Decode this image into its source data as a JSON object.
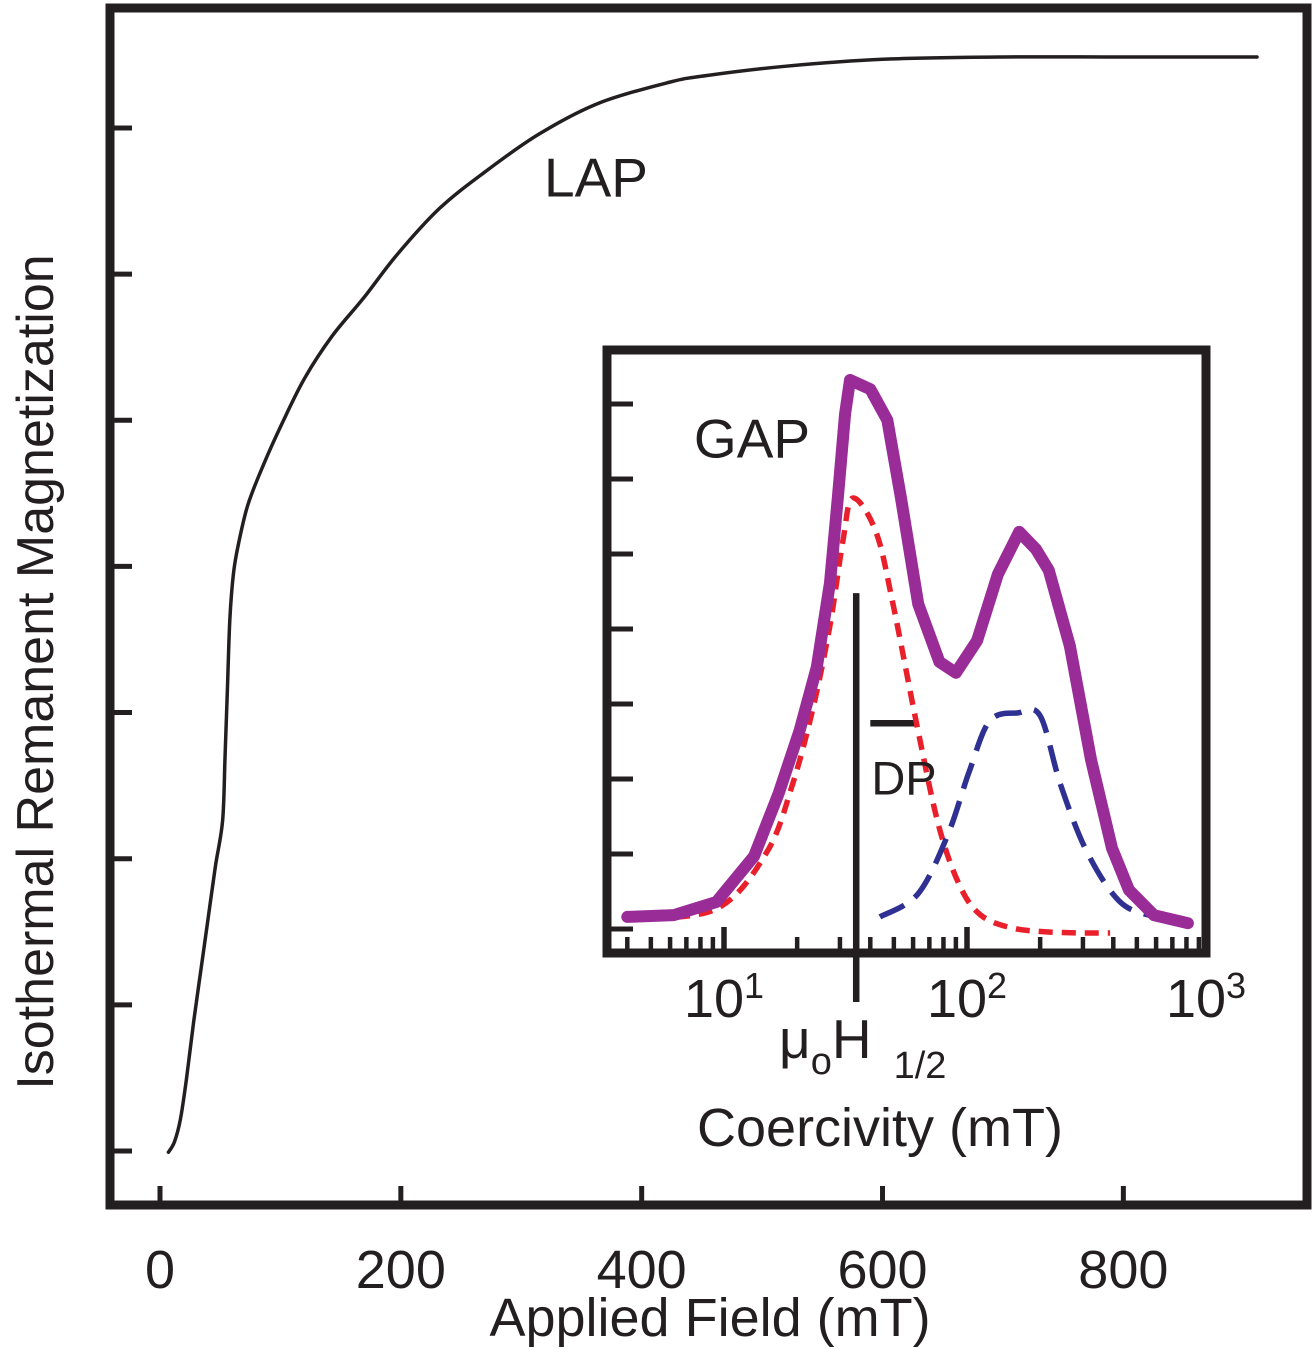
{
  "labels": {
    "lap": "LAP",
    "gap": "GAP",
    "dp": "DP",
    "ylabel_main": "Isothermal Remanent Magnetization",
    "xlabel_main": "Applied Field (mT)",
    "xlabel_inset": "Coercivity (mT)",
    "mu": "μ",
    "mu_sub": "o",
    "h": "H",
    "h_sub": "1/2"
  },
  "colors": {
    "ink": "#231F20",
    "gap_total": "#992C97",
    "gap_soft_component": "#E9202B",
    "gap_hard_component": "#2E3192"
  },
  "chart_data": [
    {
      "id": "lap-main",
      "type": "line",
      "title": "LAP",
      "xlabel": "Applied Field (mT)",
      "ylabel": "Isothermal Remanent Magnetization",
      "x_ticks": [
        0,
        200,
        400,
        600,
        800
      ],
      "xlim": [
        -41,
        952
      ],
      "ylim": [
        0,
        1.05
      ],
      "y_ticks_unlabeled_count": 8,
      "grid": false,
      "legend": "none",
      "note": "y values normalized: 1.0 = saturation IRM; y axis ticks are unlabeled",
      "series": [
        {
          "name": "IRM acquisition curve (LAP)",
          "color": "#231F20",
          "x": [
            7,
            12,
            17,
            22,
            28,
            34,
            40,
            46,
            52,
            54,
            56,
            58,
            61,
            65,
            73,
            86,
            101,
            120,
            143,
            169,
            197,
            232,
            270,
            315,
            365,
            423,
            455,
            520,
            600,
            700,
            800,
            911
          ],
          "y": [
            0.046,
            0.055,
            0.075,
            0.11,
            0.16,
            0.205,
            0.25,
            0.295,
            0.335,
            0.39,
            0.45,
            0.51,
            0.55,
            0.575,
            0.61,
            0.645,
            0.68,
            0.72,
            0.757,
            0.79,
            0.828,
            0.868,
            0.9,
            0.933,
            0.96,
            0.978,
            0.984,
            0.992,
            0.998,
            1.0,
            1.0,
            1.0
          ]
        }
      ]
    },
    {
      "id": "gap-inset",
      "type": "line",
      "title": "GAP",
      "xlabel": "Coercivity (mT)",
      "x_scale": "log10",
      "xlim": [
        3.3,
        960
      ],
      "ylim": [
        0,
        1.05
      ],
      "y_ticks_unlabeled_count": 8,
      "x_tick_labels": [
        {
          "base": "10",
          "exp": "1",
          "value": 10
        },
        {
          "base": "10",
          "exp": "2",
          "value": 100
        },
        {
          "base": "10",
          "exp": "3",
          "value": 1000
        }
      ],
      "x_minor_ticks": [
        4,
        5,
        6,
        7,
        8,
        9,
        20,
        30,
        40,
        50,
        60,
        70,
        80,
        90,
        200,
        300,
        400,
        500,
        600,
        700,
        800,
        900
      ],
      "grid": false,
      "legend": "none",
      "note": "coercivity-gradient spectrum; y values normalized: 1.0 = height of main peak",
      "annotations": {
        "h_half_line": {
          "label": "μoH1/2",
          "x": 35,
          "y_top": 0.628,
          "extends_below_axis": true
        },
        "dp_bracket": {
          "label": "DP",
          "x_from": 40,
          "x_to": 63,
          "y": 0.401
        }
      },
      "series": [
        {
          "name": "GAP total gradient",
          "style": "solid-thick",
          "color": "#992C97",
          "x": [
            4.0,
            6.2,
            9.3,
            13.3,
            16.8,
            20.5,
            24.1,
            27.3,
            29.4,
            31.5,
            33,
            40,
            47,
            53.5,
            63,
            77,
            90,
            110,
            134,
            164,
            192,
            217,
            265,
            324,
            395,
            464,
            588,
            811
          ],
          "y": [
            0.063,
            0.066,
            0.089,
            0.169,
            0.279,
            0.389,
            0.499,
            0.646,
            0.794,
            0.941,
            1.0,
            0.984,
            0.93,
            0.794,
            0.609,
            0.508,
            0.489,
            0.545,
            0.661,
            0.735,
            0.705,
            0.668,
            0.536,
            0.337,
            0.183,
            0.11,
            0.066,
            0.052
          ]
        },
        {
          "name": "low-coercivity component (DP)",
          "style": "dashed",
          "color": "#E9202B",
          "x": [
            4.1,
            9.3,
            15.0,
            19.1,
            23.2,
            27.3,
            30.9,
            33.9,
            42.2,
            49.6,
            62.8,
            76.7,
            93.5,
            114,
            152,
            209,
            300,
            388
          ],
          "y": [
            0.059,
            0.077,
            0.176,
            0.293,
            0.426,
            0.572,
            0.721,
            0.794,
            0.735,
            0.609,
            0.389,
            0.22,
            0.117,
            0.066,
            0.044,
            0.037,
            0.035,
            0.035
          ]
        },
        {
          "name": "high-coercivity component",
          "style": "long-dashed",
          "color": "#2E3192",
          "x": [
            43.8,
            62.8,
            83.3,
            102,
            124,
            162,
            200,
            243,
            312,
            427,
            596,
            833
          ],
          "y": [
            0.063,
            0.103,
            0.206,
            0.316,
            0.405,
            0.419,
            0.414,
            0.293,
            0.176,
            0.089,
            0.063,
            0.049
          ]
        }
      ]
    }
  ]
}
